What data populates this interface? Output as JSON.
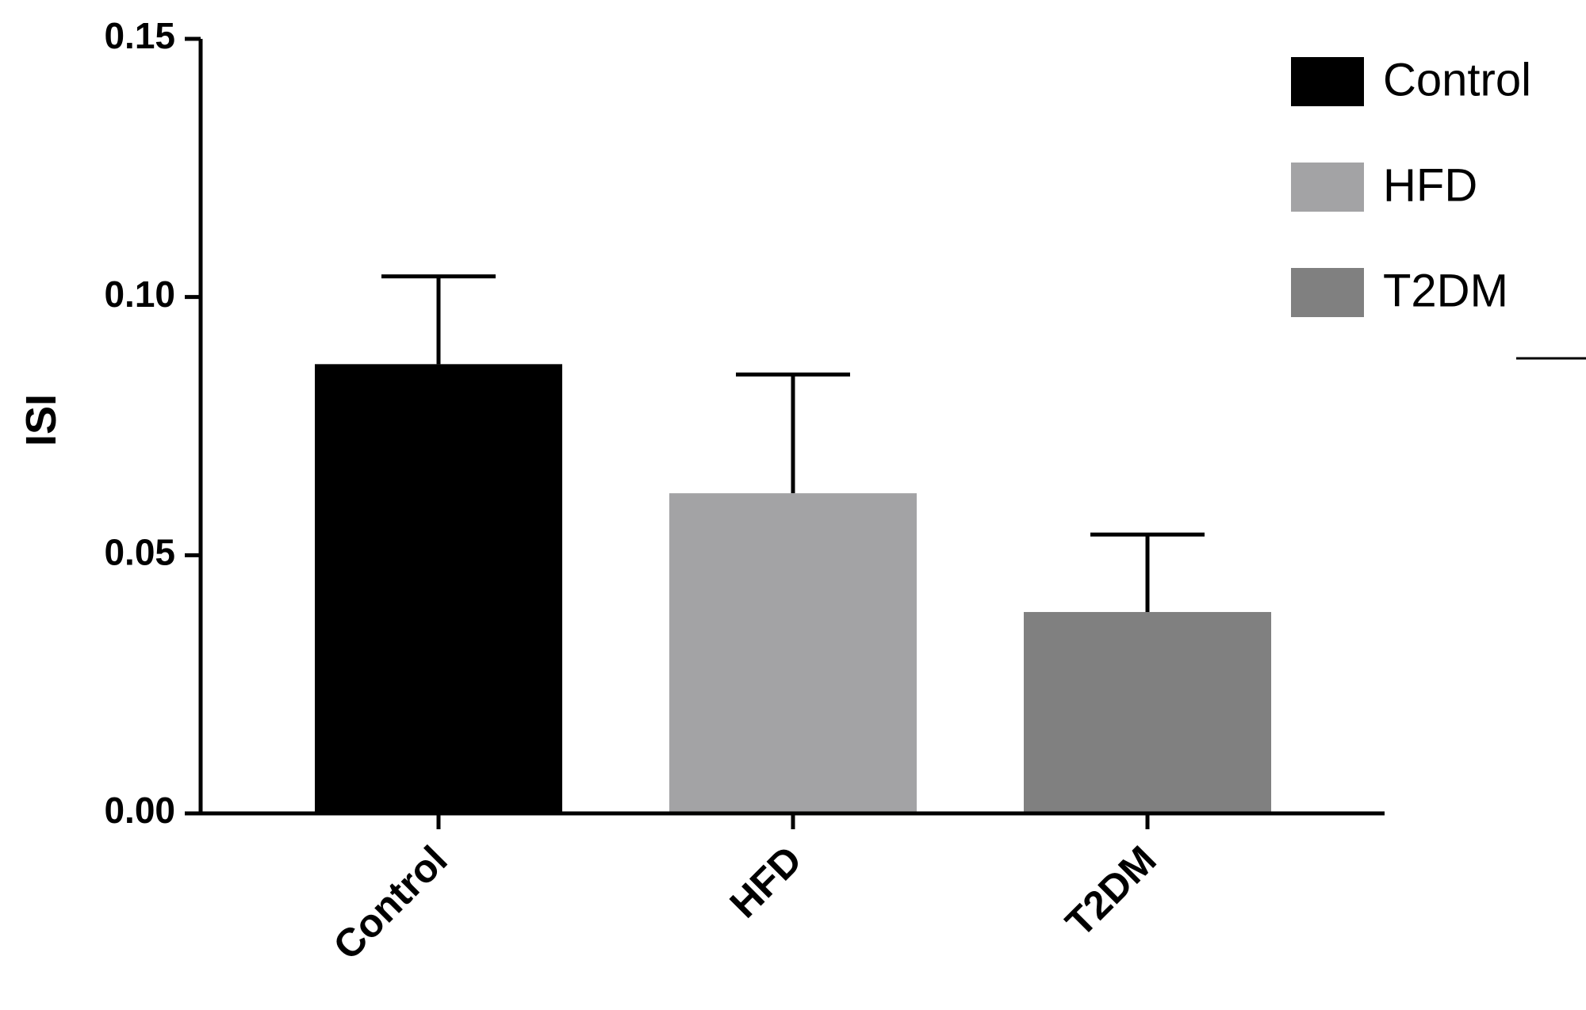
{
  "chart_data": {
    "type": "bar",
    "title": "",
    "xlabel": "",
    "ylabel": "ISI",
    "categories": [
      "Control",
      "HFD",
      "T2DM"
    ],
    "values": [
      0.087,
      0.062,
      0.039
    ],
    "errors": [
      0.017,
      0.023,
      0.015
    ],
    "colors": [
      "#000000",
      "#a3a3a5",
      "#808080"
    ],
    "ylim": [
      0,
      0.15
    ],
    "yticks": [
      0.0,
      0.05,
      0.1,
      0.15
    ],
    "ytick_labels": [
      "0.00",
      "0.05",
      "0.10",
      "0.15"
    ],
    "grid": false,
    "legend": {
      "placement": "top-right",
      "entries": [
        {
          "label": "Control",
          "color": "#000000"
        },
        {
          "label": "HFD",
          "color": "#a3a3a5"
        },
        {
          "label": "T2DM",
          "color": "#808080"
        }
      ]
    }
  }
}
